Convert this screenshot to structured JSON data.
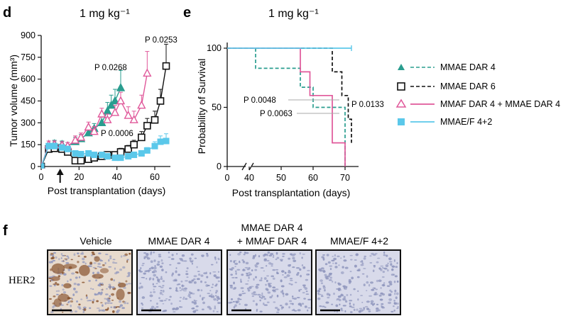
{
  "colors": {
    "teal": "#2a9d8f",
    "black": "#111111",
    "pink": "#e0589a",
    "cyan": "#5bc8ea",
    "stain_blue": "#8f96bd",
    "stain_brown": "#8a5530"
  },
  "chart_data": [
    {
      "panel": "d",
      "type": "line",
      "title": "1 mg kg⁻¹",
      "xlabel": "Post transplantation (days)",
      "ylabel": "Tumor volume (mm³)",
      "xlim": [
        0,
        70
      ],
      "ylim": [
        0,
        900
      ],
      "xticks": [
        "0",
        "20",
        "40",
        "60"
      ],
      "yticks": [
        "0",
        "150",
        "300",
        "450",
        "600",
        "750",
        "900"
      ],
      "dosing_arrow_x": 10,
      "series": [
        {
          "name": "MMAE DAR 4",
          "color": "#2a9d8f",
          "marker": "triangle",
          "fill": true,
          "x": [
            0,
            4,
            7,
            11,
            14,
            18,
            21,
            25,
            28,
            32,
            35,
            37,
            39,
            42
          ],
          "y": [
            0,
            150,
            155,
            150,
            140,
            170,
            190,
            230,
            260,
            300,
            380,
            420,
            450,
            540
          ],
          "err": [
            0,
            25,
            25,
            25,
            25,
            30,
            30,
            35,
            35,
            45,
            60,
            70,
            80,
            120
          ]
        },
        {
          "name": "MMAE DAR 6",
          "color": "#111111",
          "marker": "square",
          "fill": false,
          "x": [
            0,
            4,
            7,
            11,
            14,
            18,
            21,
            25,
            28,
            32,
            35,
            39,
            42,
            46,
            49,
            53,
            56,
            60,
            63,
            66
          ],
          "y": [
            0,
            120,
            125,
            120,
            100,
            40,
            40,
            50,
            60,
            70,
            80,
            80,
            100,
            120,
            150,
            200,
            280,
            320,
            450,
            690
          ],
          "err": [
            0,
            20,
            20,
            20,
            20,
            15,
            15,
            15,
            15,
            15,
            20,
            20,
            25,
            25,
            30,
            40,
            50,
            60,
            80,
            150
          ]
        },
        {
          "name": "MMAF DAR 4 + MMAE DAR 4",
          "color": "#e0589a",
          "marker": "triangle",
          "fill": false,
          "x": [
            0,
            4,
            7,
            11,
            14,
            18,
            21,
            25,
            28,
            32,
            35,
            39,
            42,
            46,
            49,
            53,
            56
          ],
          "y": [
            0,
            150,
            150,
            145,
            140,
            180,
            200,
            270,
            240,
            360,
            320,
            370,
            450,
            350,
            320,
            420,
            640
          ],
          "err": [
            0,
            25,
            25,
            25,
            25,
            30,
            30,
            35,
            35,
            40,
            40,
            50,
            60,
            60,
            60,
            70,
            150
          ]
        },
        {
          "name": "MMAE/F 4+2",
          "color": "#5bc8ea",
          "marker": "square",
          "fill": true,
          "x": [
            0,
            4,
            7,
            11,
            14,
            18,
            21,
            25,
            28,
            32,
            35,
            39,
            42,
            46,
            49,
            53,
            56,
            60,
            63,
            66
          ],
          "y": [
            0,
            140,
            140,
            130,
            120,
            90,
            85,
            90,
            80,
            80,
            70,
            60,
            60,
            70,
            80,
            90,
            110,
            140,
            170,
            175
          ],
          "err": [
            0,
            20,
            20,
            20,
            20,
            15,
            15,
            15,
            15,
            15,
            15,
            15,
            15,
            15,
            20,
            20,
            20,
            30,
            40,
            50
          ]
        }
      ],
      "annotations": [
        "P 0.0268",
        "P 0.0253",
        "P 0.0006"
      ]
    },
    {
      "panel": "e",
      "type": "line",
      "title": "1 mg kg⁻¹",
      "xlabel": "Post transplantation (days)",
      "ylabel": "Probability of Survival",
      "xlim": [
        0,
        75
      ],
      "ylim": [
        0,
        100
      ],
      "axis_break": true,
      "xticks": [
        "0",
        "40",
        "50",
        "60",
        "70"
      ],
      "yticks": [
        "0",
        "50",
        "100"
      ],
      "series": [
        {
          "name": "MMAE DAR 4",
          "color": "#2a9d8f",
          "dash": true,
          "steps": [
            [
              0,
              100
            ],
            [
              42,
              100
            ],
            [
              42,
              83
            ],
            [
              56,
              83
            ],
            [
              56,
              67
            ],
            [
              60,
              67
            ],
            [
              60,
              50
            ],
            [
              70,
              50
            ],
            [
              70,
              0
            ]
          ]
        },
        {
          "name": "MMAE DAR 6",
          "color": "#111111",
          "dash": true,
          "steps": [
            [
              0,
              100
            ],
            [
              66,
              100
            ],
            [
              66,
              80
            ],
            [
              69,
              80
            ],
            [
              69,
              60
            ],
            [
              71,
              60
            ],
            [
              71,
              40
            ],
            [
              72,
              40
            ],
            [
              72,
              20
            ]
          ]
        },
        {
          "name": "MMAF DAR 4 + MMAE DAR 4",
          "color": "#e0589a",
          "dash": false,
          "steps": [
            [
              0,
              100
            ],
            [
              56,
              100
            ],
            [
              56,
              80
            ],
            [
              59,
              80
            ],
            [
              59,
              60
            ],
            [
              66,
              60
            ],
            [
              66,
              20
            ],
            [
              70,
              20
            ],
            [
              70,
              0
            ]
          ]
        },
        {
          "name": "MMAE/F 4+2",
          "color": "#5bc8ea",
          "dash": false,
          "steps": [
            [
              0,
              100
            ],
            [
              72,
              100
            ]
          ]
        }
      ],
      "annotations": [
        "P 0.0048",
        "P 0.0063",
        "P 0.0133"
      ]
    }
  ],
  "labels": {
    "panel_d": "d",
    "panel_e": "e",
    "panel_f": "f",
    "d_title": "1 mg kg⁻¹",
    "e_title": "1 mg kg⁻¹",
    "legend": [
      "MMAE DAR 4",
      "MMAE DAR 6",
      "MMAF DAR 4 + MMAE DAR 4",
      "MMAE/F 4+2"
    ]
  },
  "histology": {
    "row_label": "HER2",
    "columns": [
      {
        "label_line1": "Vehicle",
        "label_line2": "",
        "stain": "brown"
      },
      {
        "label_line1": "MMAE DAR 4",
        "label_line2": "",
        "stain": "blue"
      },
      {
        "label_line1": "MMAE DAR 4",
        "label_line2": "+ MMAF DAR 4",
        "stain": "blue"
      },
      {
        "label_line1": "MMAE/F 4+2",
        "label_line2": "",
        "stain": "blue"
      }
    ]
  }
}
